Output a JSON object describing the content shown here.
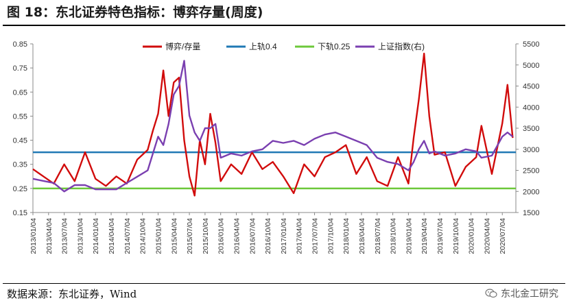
{
  "header": {
    "title": "图 18：东北证券特色指标：博弈存量(周度)"
  },
  "footer": {
    "source": "数据来源：东北证券，Wind",
    "watermark": "东北金工研究",
    "watermark_icon": "wechat-icon"
  },
  "chart_data": {
    "type": "line",
    "left_axis": {
      "min": 0.15,
      "max": 0.85,
      "ticks": [
        "0.85",
        "0.75",
        "0.65",
        "0.55",
        "0.45",
        "0.35",
        "0.25",
        "0.15"
      ]
    },
    "right_axis": {
      "min": 1500,
      "max": 5500,
      "ticks": [
        "5500",
        "5000",
        "4500",
        "4000",
        "3500",
        "3000",
        "2500",
        "2000",
        "1500"
      ]
    },
    "x_ticks": [
      "2013/01/04",
      "2013/04/04",
      "2013/07/04",
      "2013/10/04",
      "2014/01/04",
      "2014/04/04",
      "2014/07/04",
      "2014/10/04",
      "2015/01/04",
      "2015/04/04",
      "2015/07/04",
      "2015/10/04",
      "2016/01/04",
      "2016/04/04",
      "2016/07/04",
      "2016/10/04",
      "2017/01/04",
      "2017/04/04",
      "2017/07/04",
      "2017/10/04",
      "2018/01/04",
      "2018/04/04",
      "2018/07/04",
      "2018/10/04",
      "2019/01/04",
      "2019/04/04",
      "2019/07/04",
      "2019/10/04",
      "2020/01/04",
      "2020/04/04",
      "2020/07/04"
    ],
    "legend": [
      "博弈/存量",
      "上轨0.4",
      "下轨0.25",
      "上证指数(右)"
    ],
    "colors": {
      "game": "#d10b0b",
      "upper": "#1f78b4",
      "lower": "#6cc83a",
      "sh": "#7a3fb0"
    },
    "upper_band": 0.4,
    "lower_band": 0.25,
    "series": [
      {
        "name": "博弈/存量",
        "axis": "left",
        "x": [
          "2013/01",
          "2013/03",
          "2013/05",
          "2013/07",
          "2013/09",
          "2013/11",
          "2014/01",
          "2014/03",
          "2014/05",
          "2014/07",
          "2014/09",
          "2014/11",
          "2014/12",
          "2015/01",
          "2015/02",
          "2015/03",
          "2015/04",
          "2015/05",
          "2015/06",
          "2015/07",
          "2015/08",
          "2015/09",
          "2015/10",
          "2015/11",
          "2015/12",
          "2016/01",
          "2016/03",
          "2016/05",
          "2016/07",
          "2016/09",
          "2016/11",
          "2017/01",
          "2017/03",
          "2017/05",
          "2017/07",
          "2017/09",
          "2017/11",
          "2018/01",
          "2018/03",
          "2018/05",
          "2018/07",
          "2018/09",
          "2018/11",
          "2019/01",
          "2019/02",
          "2019/03",
          "2019/04",
          "2019/05",
          "2019/06",
          "2019/08",
          "2019/10",
          "2019/12",
          "2020/02",
          "2020/03",
          "2020/05",
          "2020/07",
          "2020/08",
          "2020/09"
        ],
        "values": [
          0.33,
          0.3,
          0.27,
          0.35,
          0.28,
          0.4,
          0.29,
          0.26,
          0.3,
          0.27,
          0.37,
          0.41,
          0.49,
          0.56,
          0.74,
          0.55,
          0.69,
          0.71,
          0.45,
          0.3,
          0.22,
          0.45,
          0.35,
          0.56,
          0.44,
          0.28,
          0.35,
          0.31,
          0.4,
          0.33,
          0.36,
          0.3,
          0.23,
          0.35,
          0.3,
          0.38,
          0.4,
          0.43,
          0.31,
          0.38,
          0.28,
          0.26,
          0.38,
          0.27,
          0.46,
          0.62,
          0.81,
          0.55,
          0.39,
          0.4,
          0.26,
          0.34,
          0.38,
          0.51,
          0.31,
          0.52,
          0.68,
          0.46
        ]
      },
      {
        "name": "上证指数(右)",
        "axis": "right",
        "x": [
          "2013/01",
          "2013/03",
          "2013/05",
          "2013/07",
          "2013/09",
          "2013/11",
          "2014/01",
          "2014/03",
          "2014/05",
          "2014/07",
          "2014/09",
          "2014/11",
          "2014/12",
          "2015/01",
          "2015/02",
          "2015/03",
          "2015/04",
          "2015/05",
          "2015/06",
          "2015/07",
          "2015/08",
          "2015/09",
          "2015/10",
          "2015/11",
          "2015/12",
          "2016/01",
          "2016/03",
          "2016/05",
          "2016/07",
          "2016/09",
          "2016/11",
          "2017/01",
          "2017/03",
          "2017/05",
          "2017/07",
          "2017/09",
          "2017/11",
          "2018/01",
          "2018/03",
          "2018/05",
          "2018/07",
          "2018/09",
          "2018/11",
          "2019/01",
          "2019/02",
          "2019/03",
          "2019/04",
          "2019/05",
          "2019/06",
          "2019/08",
          "2019/10",
          "2019/12",
          "2020/02",
          "2020/03",
          "2020/05",
          "2020/07",
          "2020/08",
          "2020/09"
        ],
        "values": [
          2300,
          2250,
          2200,
          2000,
          2150,
          2150,
          2050,
          2050,
          2050,
          2200,
          2350,
          2500,
          2900,
          3300,
          3100,
          3600,
          4300,
          4500,
          5100,
          3800,
          3400,
          3200,
          3500,
          3500,
          3600,
          2800,
          2900,
          2850,
          2950,
          3000,
          3200,
          3150,
          3200,
          3100,
          3250,
          3350,
          3400,
          3300,
          3200,
          3100,
          2800,
          2700,
          2650,
          2500,
          2700,
          3000,
          3200,
          2900,
          2950,
          2850,
          2900,
          3000,
          2950,
          2800,
          2850,
          3300,
          3400,
          3300
        ]
      }
    ]
  }
}
